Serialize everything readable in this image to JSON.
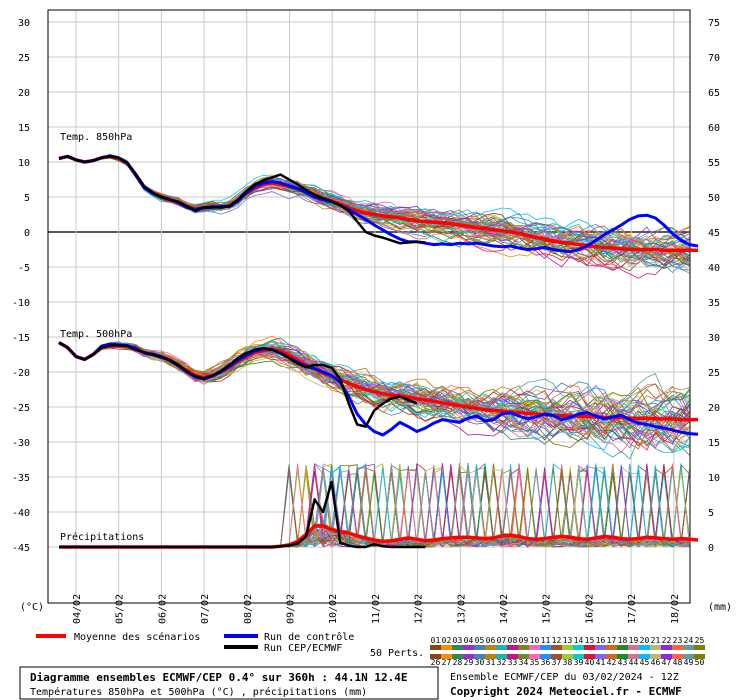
{
  "chart_data": {
    "type": "line",
    "title": "Diagramme ensembles ECMWF/CEP 0.4° sur 360h : 44.1N 12.4E",
    "subtitle": "Températures 850hPa et 500hPa (°C) , précipitations (mm)",
    "left_axis": {
      "unit": "(°C)",
      "ticks": [
        30,
        25,
        20,
        15,
        10,
        5,
        0,
        -5,
        -10,
        -15,
        -20,
        -25,
        -30,
        -35,
        -40,
        -45
      ],
      "ylim": [
        -45,
        30
      ]
    },
    "right_axis": {
      "unit": "(mm)",
      "ticks": [
        75,
        70,
        65,
        60,
        55,
        50,
        45,
        40,
        35,
        30,
        25,
        20,
        15,
        10,
        5,
        0
      ],
      "ylim": [
        0,
        75
      ]
    },
    "x_ticks": [
      "04/02",
      "05/02",
      "06/02",
      "07/02",
      "08/02",
      "09/02",
      "10/02",
      "11/02",
      "12/02",
      "13/02",
      "14/02",
      "15/02",
      "16/02",
      "17/02",
      "18/02"
    ],
    "panel_labels": {
      "t850": "Temp. 850hPa",
      "t500": "Temp. 500hPa",
      "precip": "Précipitations"
    },
    "grid": true,
    "series": [
      {
        "name": "Moyenne des scénarios",
        "color": "#ff0000",
        "panel": "t850",
        "values": [
          10.5,
          10.8,
          10.3,
          10.0,
          10.2,
          10.6,
          10.8,
          10.5,
          9.8,
          8.2,
          6.4,
          5.6,
          5.0,
          4.6,
          4.3,
          3.7,
          3.3,
          3.5,
          3.6,
          3.5,
          3.8,
          4.5,
          5.5,
          6.3,
          6.8,
          7.0,
          6.8,
          6.5,
          6.2,
          5.8,
          5.3,
          4.8,
          4.4,
          4.0,
          3.5,
          3.0,
          2.7,
          2.5,
          2.3,
          2.2,
          2.0,
          1.8,
          1.6,
          1.5,
          1.4,
          1.3,
          1.2,
          1.0,
          0.8,
          0.6,
          0.5,
          0.3,
          0.2,
          0.0,
          -0.2,
          -0.5,
          -0.8,
          -1.0,
          -1.3,
          -1.5,
          -1.6,
          -1.8,
          -2.0,
          -2.1,
          -2.2,
          -2.3,
          -2.4,
          -2.5,
          -2.5,
          -2.5,
          -2.5,
          -2.6,
          -2.6,
          -2.6,
          -2.6,
          -2.6
        ]
      },
      {
        "name": "Run de contrôle",
        "color": "#0000ff",
        "panel": "t850",
        "values": [
          10.5,
          10.8,
          10.3,
          10.0,
          10.2,
          10.6,
          10.9,
          10.6,
          9.9,
          8.1,
          6.3,
          5.5,
          5.0,
          4.7,
          4.2,
          3.5,
          3.2,
          3.5,
          3.5,
          3.7,
          3.6,
          4.4,
          5.6,
          6.5,
          7.0,
          7.2,
          7.0,
          6.6,
          6.2,
          5.6,
          5.0,
          4.6,
          4.3,
          3.8,
          3.2,
          2.5,
          1.8,
          1.0,
          0.3,
          -0.4,
          -1.0,
          -1.4,
          -1.4,
          -1.6,
          -1.8,
          -1.7,
          -1.8,
          -1.6,
          -1.7,
          -1.6,
          -1.8,
          -2.0,
          -2.1,
          -2.0,
          -2.3,
          -2.5,
          -2.4,
          -2.2,
          -2.5,
          -2.7,
          -2.8,
          -2.5,
          -2.0,
          -1.2,
          -0.4,
          0.3,
          1.0,
          1.8,
          2.3,
          2.4,
          2.0,
          1.0,
          -0.2,
          -1.2,
          -1.8,
          -2.0
        ]
      },
      {
        "name": "Run CEP/ECMWF",
        "color": "#000000",
        "panel": "t850",
        "values": [
          10.5,
          10.8,
          10.3,
          10.0,
          10.2,
          10.6,
          10.8,
          10.6,
          9.9,
          8.3,
          6.5,
          5.6,
          5.0,
          4.6,
          4.3,
          3.7,
          3.0,
          3.5,
          3.6,
          3.5,
          3.7,
          4.6,
          5.8,
          6.8,
          7.4,
          7.8,
          8.2,
          7.5,
          6.8,
          6.0,
          5.3,
          4.8,
          4.4,
          3.8,
          3.0,
          1.5,
          0.0,
          -0.5,
          -0.8,
          -1.2,
          -1.6,
          -1.5,
          -1.4,
          -1.5
        ]
      },
      {
        "name": "Moyenne des scénarios",
        "color": "#ff0000",
        "panel": "t500",
        "values": [
          -15.8,
          -16.5,
          -17.8,
          -18.2,
          -17.5,
          -16.5,
          -16.2,
          -16.2,
          -16.3,
          -16.7,
          -17.2,
          -17.5,
          -17.8,
          -18.3,
          -19.0,
          -19.8,
          -20.5,
          -20.8,
          -20.5,
          -20.0,
          -19.3,
          -18.5,
          -17.8,
          -17.2,
          -16.9,
          -16.8,
          -17.0,
          -17.6,
          -18.3,
          -19.0,
          -19.6,
          -20.1,
          -20.6,
          -21.1,
          -21.6,
          -22.1,
          -22.5,
          -22.8,
          -23.1,
          -23.3,
          -23.4,
          -23.6,
          -23.8,
          -24.0,
          -24.2,
          -24.4,
          -24.6,
          -24.8,
          -25.0,
          -25.2,
          -25.4,
          -25.5,
          -25.6,
          -25.7,
          -25.8,
          -25.9,
          -26.0,
          -26.1,
          -26.2,
          -26.2,
          -26.3,
          -26.3,
          -26.4,
          -26.4,
          -26.5,
          -26.5,
          -26.5,
          -26.6,
          -26.6,
          -26.6,
          -26.7,
          -26.7,
          -26.7,
          -26.8,
          -26.8,
          -26.8
        ]
      },
      {
        "name": "Run de contrôle",
        "color": "#0000ff",
        "panel": "t500",
        "values": [
          -15.8,
          -16.5,
          -17.8,
          -18.2,
          -17.5,
          -16.3,
          -16.0,
          -16.1,
          -16.2,
          -16.6,
          -17.3,
          -17.5,
          -17.9,
          -18.3,
          -19.1,
          -20.0,
          -20.7,
          -21.0,
          -20.6,
          -20.0,
          -19.2,
          -18.3,
          -17.6,
          -17.0,
          -16.7,
          -16.8,
          -17.3,
          -18.0,
          -18.6,
          -19.2,
          -19.5,
          -20.0,
          -20.5,
          -21.5,
          -23.5,
          -26.0,
          -27.5,
          -28.5,
          -29.0,
          -28.2,
          -27.2,
          -27.8,
          -28.5,
          -28.0,
          -27.3,
          -26.8,
          -27.0,
          -27.2,
          -26.6,
          -26.3,
          -27.0,
          -26.8,
          -26.0,
          -25.8,
          -26.3,
          -26.7,
          -26.4,
          -26.0,
          -26.2,
          -26.8,
          -26.5,
          -26.0,
          -25.8,
          -26.3,
          -26.7,
          -26.4,
          -26.2,
          -26.8,
          -27.3,
          -27.5,
          -27.8,
          -28.0,
          -28.3,
          -28.6,
          -28.8,
          -28.9
        ]
      },
      {
        "name": "Run CEP/ECMWF",
        "color": "#000000",
        "panel": "t500",
        "values": [
          -15.8,
          -16.5,
          -17.8,
          -18.2,
          -17.5,
          -16.5,
          -16.2,
          -16.2,
          -16.3,
          -16.8,
          -17.2,
          -17.5,
          -17.8,
          -18.3,
          -19.0,
          -19.9,
          -20.6,
          -20.9,
          -20.5,
          -19.9,
          -19.0,
          -18.0,
          -17.3,
          -16.8,
          -16.6,
          -16.8,
          -17.3,
          -18.0,
          -18.8,
          -19.3,
          -19.0,
          -19.0,
          -19.4,
          -21.0,
          -24.5,
          -27.5,
          -27.8,
          -25.5,
          -24.5,
          -23.8,
          -23.5,
          -24.0,
          -24.5
        ]
      },
      {
        "name": "Moyenne des scénarios",
        "color": "#ff0000",
        "panel": "precip",
        "values": [
          0,
          0,
          0,
          0,
          0,
          0,
          0,
          0,
          0,
          0,
          0,
          0,
          0,
          0,
          0,
          0,
          0,
          0,
          0,
          0,
          0,
          0,
          0,
          0,
          0,
          0,
          0.1,
          0.3,
          0.8,
          1.8,
          3.0,
          3.0,
          2.5,
          2.2,
          2.0,
          1.6,
          1.3,
          1.0,
          0.8,
          0.9,
          1.1,
          1.3,
          1.1,
          0.9,
          1.0,
          1.2,
          1.3,
          1.4,
          1.4,
          1.3,
          1.2,
          1.3,
          1.6,
          1.7,
          1.5,
          1.2,
          1.1,
          1.2,
          1.4,
          1.5,
          1.4,
          1.2,
          1.1,
          1.3,
          1.5,
          1.4,
          1.2,
          1.1,
          1.2,
          1.4,
          1.3,
          1.2,
          1.1,
          1.2,
          1.1,
          1.0
        ]
      },
      {
        "name": "Run CEP/ECMWF",
        "color": "#000000",
        "panel": "precip",
        "values": [
          0,
          0,
          0,
          0,
          0,
          0,
          0,
          0,
          0,
          0,
          0,
          0,
          0,
          0,
          0,
          0,
          0,
          0,
          0,
          0,
          0,
          0,
          0,
          0,
          0,
          0,
          0.1,
          0.2,
          0.5,
          1.5,
          6.8,
          5.0,
          9.3,
          0.6,
          0.2,
          0.0,
          0.0,
          0.4,
          0.1,
          0.0,
          0.0,
          0.0,
          0.0,
          0.0
        ]
      }
    ],
    "perturbations": {
      "count": 50,
      "label": "50 Perts.",
      "ids": [
        "01",
        "02",
        "03",
        "04",
        "05",
        "06",
        "07",
        "08",
        "09",
        "10",
        "11",
        "12",
        "13",
        "14",
        "15",
        "16",
        "17",
        "18",
        "19",
        "20",
        "21",
        "22",
        "23",
        "24",
        "25",
        "26",
        "27",
        "28",
        "29",
        "30",
        "31",
        "32",
        "33",
        "34",
        "35",
        "36",
        "37",
        "38",
        "39",
        "40",
        "41",
        "42",
        "43",
        "44",
        "45",
        "46",
        "47",
        "48",
        "49",
        "50"
      ]
    }
  },
  "footer": {
    "source_line": "Ensemble ECMWF/CEP du 03/02/2024 - 12Z",
    "copyright": "Copyright 2024 Meteociel.fr - ECMWF"
  },
  "palette": [
    "#8b4513",
    "#ff8c00",
    "#2e8b57",
    "#9932cc",
    "#4682b4",
    "#b8860b",
    "#20b2aa",
    "#c71585",
    "#6b8e23",
    "#ff69b4",
    "#1e90ff",
    "#a0522d",
    "#9acd32",
    "#00ced1",
    "#dc143c",
    "#7b68ee",
    "#d2691e",
    "#228b22",
    "#db7093",
    "#00bfff",
    "#bdb76b",
    "#8a2be2",
    "#ff6347",
    "#5f9ea0",
    "#808000"
  ]
}
